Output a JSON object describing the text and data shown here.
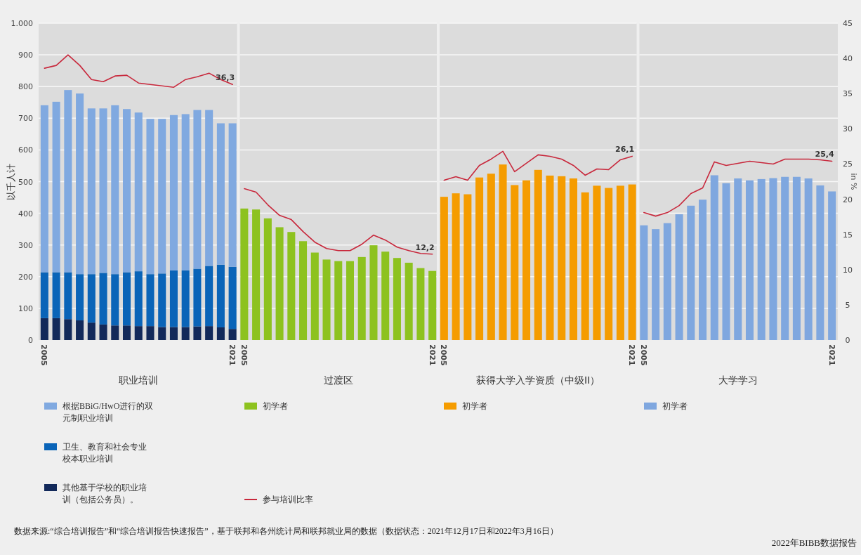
{
  "chart_data": {
    "type": "bar",
    "stacked": true,
    "ylabel": "以千人计",
    "y2label": "in %",
    "categories": [
      "2005",
      null,
      null,
      null,
      null,
      null,
      null,
      null,
      null,
      null,
      null,
      null,
      null,
      null,
      null,
      null,
      "2021",
      "2005",
      null,
      null,
      null,
      null,
      null,
      null,
      null,
      null,
      null,
      null,
      null,
      null,
      null,
      null,
      null,
      "2021",
      "2005",
      null,
      null,
      null,
      null,
      null,
      null,
      null,
      null,
      null,
      null,
      null,
      null,
      null,
      null,
      null,
      "2021",
      "2005",
      null,
      null,
      null,
      null,
      null,
      null,
      null,
      null,
      null,
      null,
      null,
      null,
      null,
      null,
      null,
      "2021"
    ],
    "series": [
      {
        "name": "其他基于学校的职业培训（包括公务员）。",
        "color": "#12295a",
        "values": [
          69,
          69,
          66,
          62,
          55,
          49,
          46,
          46,
          44,
          44,
          41,
          41,
          41,
          43,
          44,
          40,
          35,
          null,
          null,
          null,
          null,
          null,
          null,
          null,
          null,
          null,
          null,
          null,
          null,
          null,
          null,
          null,
          null,
          null,
          null,
          null,
          null,
          null,
          null,
          null,
          null,
          null,
          null,
          null,
          null,
          null,
          null,
          null,
          null,
          null,
          null,
          null,
          null,
          null,
          null,
          null,
          null,
          null,
          null,
          null,
          null,
          null,
          null,
          null,
          null,
          null,
          null,
          null
        ]
      },
      {
        "name": "卫生、教育和社会专业校本职业培训",
        "color": "#0a64b8",
        "values": [
          145,
          145,
          148,
          146,
          153,
          163,
          162,
          168,
          173,
          164,
          169,
          179,
          179,
          182,
          190,
          198,
          196,
          null,
          null,
          null,
          null,
          null,
          null,
          null,
          null,
          null,
          null,
          null,
          null,
          null,
          null,
          null,
          null,
          null,
          null,
          null,
          null,
          null,
          null,
          null,
          null,
          null,
          null,
          null,
          null,
          null,
          null,
          null,
          null,
          null,
          null,
          null,
          null,
          null,
          null,
          null,
          null,
          null,
          null,
          null,
          null,
          null,
          null,
          null,
          null,
          null,
          null,
          null
        ]
      },
      {
        "name": "根据BBiG/HwO进行的双元制职业培训",
        "color": "#80a9e0",
        "values": [
          527,
          538,
          575,
          570,
          523,
          519,
          533,
          515,
          501,
          490,
          488,
          490,
          493,
          501,
          492,
          446,
          453,
          null,
          null,
          null,
          null,
          null,
          null,
          null,
          null,
          null,
          null,
          null,
          null,
          null,
          null,
          null,
          null,
          null,
          null,
          null,
          null,
          null,
          null,
          null,
          null,
          null,
          null,
          null,
          null,
          null,
          null,
          null,
          null,
          null,
          null,
          null,
          null,
          null,
          null,
          null,
          null,
          null,
          null,
          null,
          null,
          null,
          null,
          null,
          null,
          null,
          null,
          null
        ]
      },
      {
        "name": "初学者",
        "color": "#8dc21f",
        "values": [
          null,
          null,
          null,
          null,
          null,
          null,
          null,
          null,
          null,
          null,
          null,
          null,
          null,
          null,
          null,
          null,
          null,
          415,
          412,
          384,
          356,
          341,
          312,
          276,
          254,
          249,
          249,
          262,
          299,
          279,
          259,
          244,
          227,
          218,
          null,
          null,
          null,
          null,
          null,
          null,
          null,
          null,
          null,
          null,
          null,
          null,
          null,
          null,
          null,
          null,
          null,
          null,
          null,
          null,
          null,
          null,
          null,
          null,
          null,
          null,
          null,
          null,
          null,
          null,
          null,
          null,
          null,
          null
        ]
      },
      {
        "name": "初学者",
        "color": "#f59c00",
        "values": [
          null,
          null,
          null,
          null,
          null,
          null,
          null,
          null,
          null,
          null,
          null,
          null,
          null,
          null,
          null,
          null,
          null,
          null,
          null,
          null,
          null,
          null,
          null,
          null,
          null,
          null,
          null,
          null,
          null,
          null,
          null,
          null,
          null,
          null,
          452,
          463,
          460,
          513,
          525,
          554,
          489,
          504,
          537,
          519,
          517,
          510,
          466,
          487,
          480,
          487,
          491,
          null,
          null,
          null,
          null,
          null,
          null,
          null,
          null,
          null,
          null,
          null,
          null,
          null,
          null,
          null,
          null,
          null
        ]
      },
      {
        "name": "初学者",
        "color": "#7fa7df",
        "values": [
          null,
          null,
          null,
          null,
          null,
          null,
          null,
          null,
          null,
          null,
          null,
          null,
          null,
          null,
          null,
          null,
          null,
          null,
          null,
          null,
          null,
          null,
          null,
          null,
          null,
          null,
          null,
          null,
          null,
          null,
          null,
          null,
          null,
          null,
          null,
          null,
          null,
          null,
          null,
          null,
          null,
          null,
          null,
          null,
          null,
          null,
          null,
          null,
          null,
          null,
          null,
          362,
          350,
          369,
          397,
          424,
          443,
          520,
          495,
          510,
          504,
          508,
          511,
          515,
          515,
          510,
          488,
          469
        ]
      },
      {
        "name": "参与培训比率",
        "type": "line",
        "axis": "y2",
        "color": "#c8283c",
        "values": [
          38.6,
          39.0,
          40.5,
          39.0,
          37.0,
          36.7,
          37.5,
          37.6,
          36.5,
          36.3,
          36.1,
          35.9,
          37.0,
          37.4,
          37.9,
          37.0,
          36.3,
          null,
          null,
          null,
          null,
          null,
          null,
          null,
          null,
          null,
          null,
          null,
          null,
          null,
          null,
          null,
          null,
          null,
          null,
          null,
          null,
          null,
          null,
          null,
          null,
          null,
          null,
          null,
          null,
          null,
          null,
          null,
          null,
          null,
          null,
          null,
          null,
          null,
          null,
          null,
          null,
          null,
          null,
          null,
          null,
          null,
          null,
          null,
          null,
          null,
          null,
          null
        ],
        "value_labels": [
          null,
          null,
          null,
          null,
          null,
          null,
          null,
          null,
          null,
          null,
          null,
          null,
          null,
          null,
          null,
          null,
          "36,3",
          null,
          null,
          null,
          null,
          null,
          null,
          null,
          null,
          null,
          null,
          null,
          null,
          null,
          null,
          null,
          null,
          null,
          null,
          null,
          null,
          null,
          null,
          null,
          null,
          null,
          null,
          null,
          null,
          null,
          null,
          null,
          null,
          null,
          null,
          null,
          null,
          null,
          null,
          null,
          null,
          null,
          null,
          null,
          null,
          null,
          null,
          null,
          null,
          null,
          null,
          null
        ]
      },
      {
        "type": "line",
        "axis": "y2",
        "color": "#c8283c",
        "values": [
          null,
          null,
          null,
          null,
          null,
          null,
          null,
          null,
          null,
          null,
          null,
          null,
          null,
          null,
          null,
          null,
          null,
          21.5,
          21.0,
          19.2,
          17.7,
          17.1,
          15.4,
          13.9,
          13.0,
          12.7,
          12.7,
          13.6,
          14.9,
          14.2,
          13.2,
          12.7,
          12.3,
          12.2,
          null,
          null,
          null,
          null,
          null,
          null,
          null,
          null,
          null,
          null,
          null,
          null,
          null,
          null,
          null,
          null,
          null,
          null,
          null,
          null,
          null,
          null,
          null,
          null,
          null,
          null,
          null,
          null,
          null,
          null,
          null,
          null,
          null,
          null
        ],
        "value_labels": [
          null,
          null,
          null,
          null,
          null,
          null,
          null,
          null,
          null,
          null,
          null,
          null,
          null,
          null,
          null,
          null,
          null,
          null,
          null,
          null,
          null,
          null,
          null,
          null,
          null,
          null,
          null,
          null,
          null,
          null,
          null,
          null,
          null,
          "12,2",
          null,
          null,
          null,
          null,
          null,
          null,
          null,
          null,
          null,
          null,
          null,
          null,
          null,
          null,
          null,
          null,
          null,
          null,
          null,
          null,
          null,
          null,
          null,
          null,
          null,
          null,
          null,
          null,
          null,
          null,
          null,
          null,
          null,
          null
        ]
      },
      {
        "type": "line",
        "axis": "y2",
        "color": "#c8283c",
        "values": [
          null,
          null,
          null,
          null,
          null,
          null,
          null,
          null,
          null,
          null,
          null,
          null,
          null,
          null,
          null,
          null,
          null,
          null,
          null,
          null,
          null,
          null,
          null,
          null,
          null,
          null,
          null,
          null,
          null,
          null,
          null,
          null,
          null,
          null,
          22.7,
          23.2,
          22.7,
          24.8,
          25.7,
          26.8,
          23.9,
          25.1,
          26.3,
          26.1,
          25.7,
          24.8,
          23.4,
          24.3,
          24.2,
          25.6,
          26.1,
          null,
          null,
          null,
          null,
          null,
          null,
          null,
          null,
          null,
          null,
          null,
          null,
          null,
          null,
          null,
          null,
          null
        ],
        "value_labels": [
          null,
          null,
          null,
          null,
          null,
          null,
          null,
          null,
          null,
          null,
          null,
          null,
          null,
          null,
          null,
          null,
          null,
          null,
          null,
          null,
          null,
          null,
          null,
          null,
          null,
          null,
          null,
          null,
          null,
          null,
          null,
          null,
          null,
          null,
          null,
          null,
          null,
          null,
          null,
          null,
          null,
          null,
          null,
          null,
          null,
          null,
          null,
          null,
          null,
          null,
          "26,1",
          null,
          null,
          null,
          null,
          null,
          null,
          null,
          null,
          null,
          null,
          null,
          null,
          null,
          null,
          null,
          null,
          null
        ]
      },
      {
        "type": "line",
        "axis": "y2",
        "color": "#c8283c",
        "values": [
          null,
          null,
          null,
          null,
          null,
          null,
          null,
          null,
          null,
          null,
          null,
          null,
          null,
          null,
          null,
          null,
          null,
          null,
          null,
          null,
          null,
          null,
          null,
          null,
          null,
          null,
          null,
          null,
          null,
          null,
          null,
          null,
          null,
          null,
          null,
          null,
          null,
          null,
          null,
          null,
          null,
          null,
          null,
          null,
          null,
          null,
          null,
          null,
          null,
          null,
          null,
          18.1,
          17.6,
          18.1,
          19.1,
          20.8,
          21.6,
          25.3,
          24.8,
          25.1,
          25.4,
          25.2,
          25.0,
          25.7,
          25.7,
          25.7,
          25.6,
          25.4
        ],
        "value_labels": [
          null,
          null,
          null,
          null,
          null,
          null,
          null,
          null,
          null,
          null,
          null,
          null,
          null,
          null,
          null,
          null,
          null,
          null,
          null,
          null,
          null,
          null,
          null,
          null,
          null,
          null,
          null,
          null,
          null,
          null,
          null,
          null,
          null,
          null,
          null,
          null,
          null,
          null,
          null,
          null,
          null,
          null,
          null,
          null,
          null,
          null,
          null,
          null,
          null,
          null,
          null,
          null,
          null,
          null,
          null,
          null,
          null,
          null,
          null,
          null,
          null,
          null,
          null,
          null,
          null,
          null,
          null,
          "25,4"
        ]
      }
    ],
    "ylim": [
      0,
      1000
    ],
    "yticks": [
      0,
      100,
      200,
      300,
      400,
      500,
      600,
      700,
      800,
      900,
      {
        "value": 1000,
        "label": "1.000"
      }
    ],
    "y2lim": [
      0,
      45
    ],
    "y2ticks": [
      0,
      5,
      10,
      15,
      20,
      25,
      30,
      35,
      40,
      45
    ],
    "grid": "y",
    "legend": "bottom",
    "annotations": [
      "职业培训",
      "过渡区",
      "获得大学入学资质（中级II）",
      "大学学习",
      "数据来源:“综合培训报告”和“综合培训报告快速报告”，基于联邦和各州统计局和联邦就业局的数据（数据状态：2021年12月17日和2022年3月16日）",
      "2022年BIBB数据报告"
    ]
  }
}
